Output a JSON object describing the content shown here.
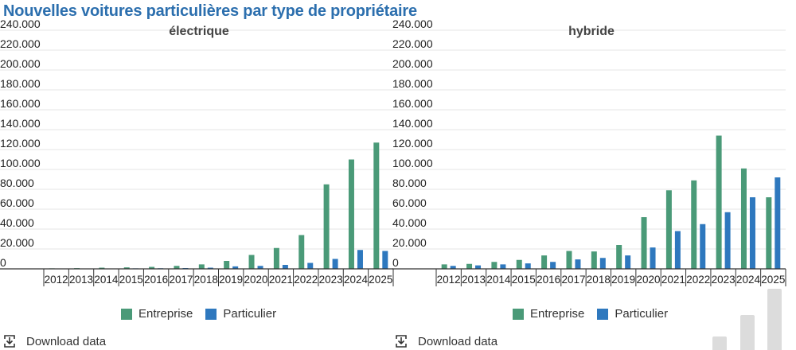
{
  "page": {
    "title": "Nouvelles voitures particulières par type de propriétaire",
    "download_label": "Download data"
  },
  "colors": {
    "entreprise": "#4a9a78",
    "particulier": "#2e78be",
    "grid": "#e4e4e4",
    "axis": "#333333",
    "title": "#2c6fae"
  },
  "icons": {
    "download": "download-icon"
  },
  "chart_data": [
    {
      "type": "bar",
      "title": "électrique",
      "xlabel": "",
      "ylabel": "",
      "ylim": [
        0,
        240000
      ],
      "yticks": [
        0,
        20000,
        40000,
        60000,
        80000,
        100000,
        120000,
        140000,
        160000,
        180000,
        200000,
        220000,
        240000
      ],
      "ytick_labels": [
        "0",
        "20.000",
        "40.000",
        "60.000",
        "80.000",
        "100.000",
        "120.000",
        "140.000",
        "160.000",
        "180.000",
        "200.000",
        "220.000",
        "240.000"
      ],
      "categories": [
        "2012",
        "2013",
        "2014",
        "2015",
        "2016",
        "2017",
        "2018",
        "2019",
        "2020",
        "2021",
        "2022",
        "2023",
        "2024",
        "2025"
      ],
      "series": [
        {
          "name": "Entreprise",
          "values": [
            500,
            700,
            1200,
            1500,
            2000,
            3000,
            4500,
            8000,
            14000,
            21000,
            34000,
            85000,
            110000,
            127000
          ]
        },
        {
          "name": "Particulier",
          "values": [
            200,
            300,
            400,
            500,
            600,
            800,
            1200,
            2500,
            3000,
            4000,
            6000,
            10000,
            19000,
            18000
          ]
        }
      ],
      "legend": "bottom",
      "grid": true
    },
    {
      "type": "bar",
      "title": "hybride",
      "xlabel": "",
      "ylabel": "",
      "ylim": [
        0,
        240000
      ],
      "yticks": [
        0,
        20000,
        40000,
        60000,
        80000,
        100000,
        120000,
        140000,
        160000,
        180000,
        200000,
        220000,
        240000
      ],
      "ytick_labels": [
        "0",
        "20.000",
        "40.000",
        "60.000",
        "80.000",
        "100.000",
        "120.000",
        "140.000",
        "160.000",
        "180.000",
        "200.000",
        "220.000",
        "240.000"
      ],
      "categories": [
        "2012",
        "2013",
        "2014",
        "2015",
        "2016",
        "2017",
        "2018",
        "2019",
        "2020",
        "2021",
        "2022",
        "2023",
        "2024",
        "2025"
      ],
      "series": [
        {
          "name": "Entreprise",
          "values": [
            4500,
            5000,
            7000,
            9000,
            13500,
            18000,
            17500,
            24000,
            52000,
            79000,
            89000,
            134000,
            101000,
            72000
          ]
        },
        {
          "name": "Particulier",
          "values": [
            3000,
            3500,
            4500,
            5500,
            7000,
            9500,
            11000,
            13500,
            21500,
            38000,
            45000,
            57000,
            72000,
            92000
          ]
        }
      ],
      "legend": "bottom",
      "grid": true
    }
  ]
}
